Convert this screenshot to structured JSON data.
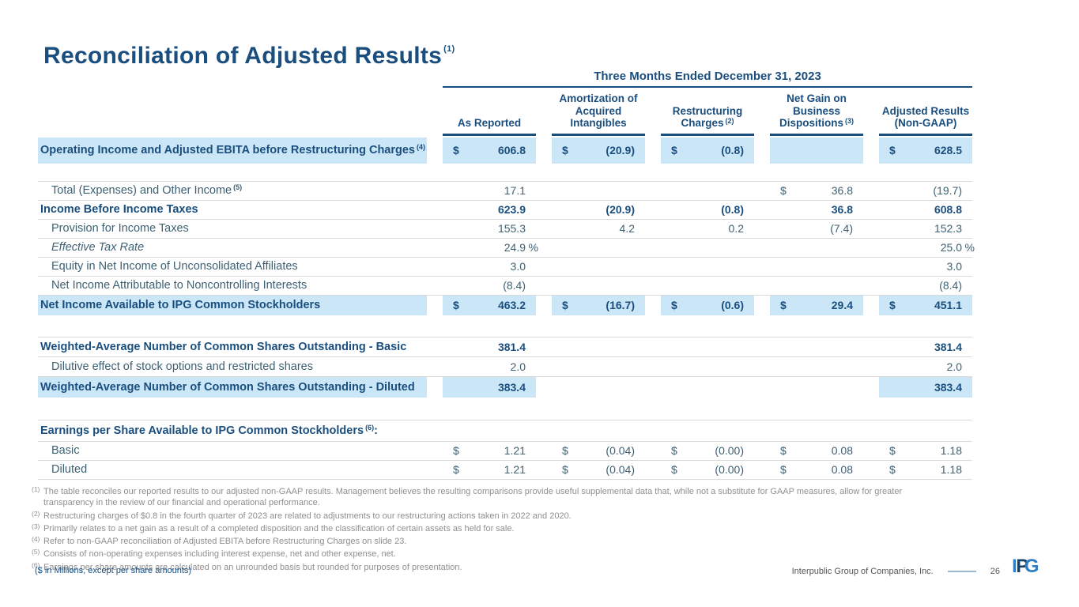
{
  "slide": {
    "title": "Reconciliation of Adjusted Results",
    "title_sup": "(1)",
    "units_note": "($ in Millions, except per share amounts)",
    "footer_company": "Interpublic Group of Companies, Inc.",
    "footer_page": "26",
    "logo": {
      "i": "I",
      "p": "P",
      "g": "G"
    }
  },
  "colors": {
    "navy": "#1a4e7e",
    "highlight_blue": "#cbe7f7",
    "body_text": "#3d6073",
    "footnote_gray": "#8f8f8f"
  },
  "table": {
    "period_header": "Three Months Ended December 31, 2023",
    "columns": [
      {
        "lines": [
          "As Reported"
        ],
        "sup": ""
      },
      {
        "lines": [
          "Amortization of",
          "Acquired",
          "Intangibles"
        ],
        "sup": ""
      },
      {
        "lines": [
          "Restructuring",
          "Charges"
        ],
        "sup": "(2)"
      },
      {
        "lines": [
          "Net Gain on",
          "Business",
          "Dispositions"
        ],
        "sup": "(3)"
      },
      {
        "lines": [
          "Adjusted Results",
          "(Non-GAAP)"
        ],
        "sup": ""
      }
    ],
    "rows": [
      {
        "type": "data",
        "label": "Operating Income and Adjusted EBITA before Restructuring Charges",
        "sup": "(4)",
        "bold": true,
        "hl_label": true,
        "height": 33,
        "cells": [
          {
            "d": "$",
            "v": "606.8",
            "hl": true
          },
          {
            "d": "$",
            "v": "(20.9)",
            "hl": true
          },
          {
            "d": "$",
            "v": "(0.8)",
            "hl": true
          },
          {
            "v": "",
            "hl": true
          },
          {
            "d": "$",
            "v": "628.5",
            "hl": true
          }
        ]
      },
      {
        "type": "spacer",
        "height": 22
      },
      {
        "type": "data",
        "label": "Total (Expenses) and Other Income",
        "sup": "(5)",
        "indent": true,
        "bt": true,
        "bb": true,
        "height": 23,
        "cells": [
          {
            "v": "17.1"
          },
          null,
          null,
          {
            "d": "$",
            "v": "36.8"
          },
          {
            "v": "(19.7)"
          }
        ]
      },
      {
        "type": "data",
        "label": "Income Before Income Taxes",
        "bold": true,
        "bb": true,
        "height": 23,
        "cells": [
          {
            "v": "623.9"
          },
          {
            "v": "(20.9)"
          },
          {
            "v": "(0.8)"
          },
          {
            "v": "36.8"
          },
          {
            "v": "608.8"
          }
        ]
      },
      {
        "type": "data",
        "label": "Provision for Income Taxes",
        "indent": true,
        "bb": true,
        "height": 23,
        "cells": [
          {
            "v": "155.3"
          },
          {
            "v": "4.2"
          },
          {
            "v": "0.2"
          },
          {
            "v": "(7.4)"
          },
          {
            "v": "152.3"
          }
        ]
      },
      {
        "type": "data",
        "label": "Effective Tax Rate",
        "italic": true,
        "indent": true,
        "bb": true,
        "height": 23,
        "cells": [
          {
            "v": "24.9",
            "suf": "%"
          },
          null,
          null,
          null,
          {
            "v": "25.0",
            "suf": "%"
          }
        ]
      },
      {
        "type": "data",
        "label": "Equity in Net Income of Unconsolidated Affiliates",
        "indent": true,
        "bb": true,
        "height": 23,
        "cells": [
          {
            "v": "3.0"
          },
          null,
          null,
          null,
          {
            "v": "3.0"
          }
        ]
      },
      {
        "type": "data",
        "label": "Net Income Attributable to Noncontrolling Interests",
        "indent": true,
        "bb": true,
        "height": 23,
        "cells": [
          {
            "v": "(8.4)"
          },
          null,
          null,
          null,
          {
            "v": "(8.4)"
          }
        ]
      },
      {
        "type": "data",
        "label": "Net Income Available to IPG Common Stockholders",
        "bold": true,
        "hl_label": true,
        "height": 25,
        "cells": [
          {
            "d": "$",
            "v": "463.2",
            "hl": true
          },
          {
            "d": "$",
            "v": "(16.7)",
            "hl": true
          },
          {
            "d": "$",
            "v": "(0.6)",
            "hl": true
          },
          {
            "d": "$",
            "v": "29.4",
            "hl": true
          },
          {
            "d": "$",
            "v": "451.1",
            "hl": true
          }
        ]
      },
      {
        "type": "spacer",
        "height": 27
      },
      {
        "type": "data",
        "label": "Weighted-Average Number of Common Shares Outstanding - Basic",
        "bold": true,
        "bt": true,
        "bb": true,
        "height": 24,
        "cells": [
          {
            "v": "381.4"
          },
          null,
          null,
          null,
          {
            "v": "381.4"
          }
        ]
      },
      {
        "type": "data",
        "label": "Dilutive effect of stock options and restricted shares",
        "indent": true,
        "bb": true,
        "height": 24,
        "cells": [
          {
            "v": "2.0"
          },
          null,
          null,
          null,
          {
            "v": "2.0"
          }
        ]
      },
      {
        "type": "data",
        "label": "Weighted-Average Number of Common Shares Outstanding - Diluted",
        "bold": true,
        "hl_label": true,
        "height": 26,
        "cells": [
          {
            "v": "383.4",
            "hl": true
          },
          null,
          null,
          null,
          {
            "v": "383.4",
            "hl": true
          }
        ]
      },
      {
        "type": "spacer",
        "height": 28
      },
      {
        "type": "data",
        "label": "Earnings per Share Available to IPG Common Stockholders",
        "sup": "(6)",
        "tail": ":",
        "bold": true,
        "bt": true,
        "bb": true,
        "height": 26,
        "cells": [
          null,
          null,
          null,
          null,
          null
        ]
      },
      {
        "type": "data",
        "label": "Basic",
        "indent": true,
        "bb": true,
        "height": 23,
        "cells": [
          {
            "d": "$",
            "v": "1.21"
          },
          {
            "d": "$",
            "v": "(0.04)"
          },
          {
            "d": "$",
            "v": "(0.00)"
          },
          {
            "d": "$",
            "v": "0.08"
          },
          {
            "d": "$",
            "v": "1.18"
          }
        ]
      },
      {
        "type": "data",
        "label": "Diluted",
        "indent": true,
        "bb": true,
        "height": 23,
        "cells": [
          {
            "d": "$",
            "v": "1.21"
          },
          {
            "d": "$",
            "v": "(0.04)"
          },
          {
            "d": "$",
            "v": "(0.00)"
          },
          {
            "d": "$",
            "v": "0.08"
          },
          {
            "d": "$",
            "v": "1.18"
          }
        ]
      }
    ]
  },
  "footnotes": [
    {
      "mark": "(1)",
      "text": "The table reconciles our reported results to our adjusted non-GAAP results. Management believes the resulting comparisons provide useful supplemental data that, while not a substitute for GAAP measures, allow for greater transparency in the review of our financial and operational performance."
    },
    {
      "mark": "(2)",
      "text": "Restructuring charges of $0.8 in the fourth quarter of 2023 are related to adjustments to our restructuring actions taken in 2022 and 2020."
    },
    {
      "mark": "(3)",
      "text": "Primarily relates to a net gain as a result of a completed disposition and the classification of certain assets as held for sale."
    },
    {
      "mark": "(4)",
      "text": "Refer to non-GAAP reconciliation of Adjusted EBITA before Restructuring Charges on slide 23."
    },
    {
      "mark": "(5)",
      "text": "Consists of non-operating expenses including interest expense, net and other expense, net."
    },
    {
      "mark": "(6)",
      "text": "Earnings per share amounts are calculated on an unrounded basis but rounded for purposes of presentation."
    }
  ]
}
